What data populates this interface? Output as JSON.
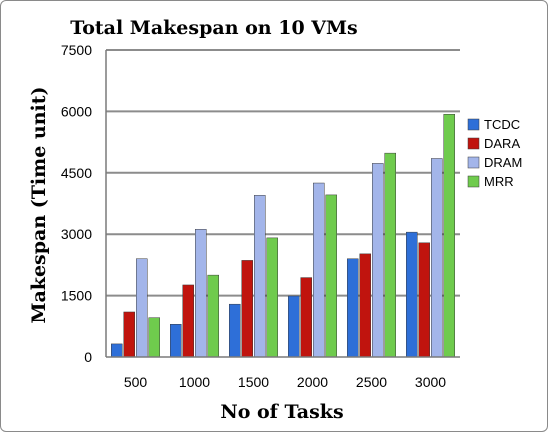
{
  "chart_data": {
    "type": "bar",
    "title": "Total Makespan on 10 VMs",
    "xlabel": "No of Tasks",
    "ylabel": "Makespan (Time unit)",
    "categories": [
      "500",
      "1000",
      "1500",
      "2000",
      "2500",
      "3000"
    ],
    "ylim": [
      0,
      7500
    ],
    "yticks": [
      0,
      1500,
      3000,
      4500,
      6000,
      7500
    ],
    "grid": true,
    "legend_position": "right",
    "series": [
      {
        "name": "TCDC",
        "color": "#2e6fd8",
        "values": [
          320,
          800,
          1290,
          1490,
          2400,
          3050
        ]
      },
      {
        "name": "DARA",
        "color": "#c0140e",
        "values": [
          1100,
          1760,
          2360,
          1940,
          2520,
          2790
        ]
      },
      {
        "name": "DRAM",
        "color": "#a3b5ea",
        "values": [
          2400,
          3120,
          3950,
          4250,
          4730,
          4850
        ]
      },
      {
        "name": "MRR",
        "color": "#6fcb4d",
        "values": [
          960,
          2000,
          2910,
          3960,
          4980,
          5930
        ]
      }
    ]
  }
}
